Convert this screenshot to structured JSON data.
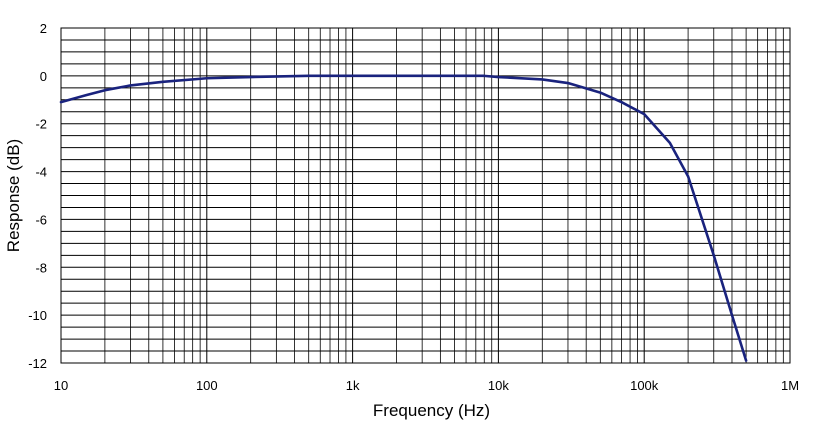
{
  "chart_data": {
    "type": "line",
    "title": "",
    "xlabel": "Frequency (Hz)",
    "ylabel": "Response (dB)",
    "xscale": "log",
    "xlim": [
      10,
      1000000
    ],
    "ylim": [
      -12,
      2
    ],
    "grid": true,
    "legend": "none",
    "x_ticks": [
      10,
      100,
      1000,
      10000,
      100000,
      1000000
    ],
    "x_tick_labels": [
      "10",
      "100",
      "1k",
      "10k",
      "100k",
      "1M"
    ],
    "y_ticks": [
      2,
      0,
      -2,
      -4,
      -6,
      -8,
      -10,
      -12
    ],
    "y_tick_labels": [
      "2",
      "0",
      "-2",
      "-4",
      "-6",
      "-8",
      "-10",
      "-12"
    ],
    "series": [
      {
        "color": "#1a237e",
        "x": [
          10,
          15,
          20,
          30,
          50,
          100,
          200,
          500,
          1000,
          2000,
          5000,
          8000,
          10000,
          20000,
          30000,
          50000,
          70000,
          100000,
          150000,
          200000,
          300000,
          400000,
          500000
        ],
        "y": [
          -1.1,
          -0.8,
          -0.6,
          -0.4,
          -0.25,
          -0.1,
          -0.05,
          0,
          0,
          0,
          0,
          0,
          -0.05,
          -0.15,
          -0.3,
          -0.7,
          -1.1,
          -1.6,
          -2.8,
          -4.2,
          -7.5,
          -10.0,
          -11.9
        ]
      }
    ],
    "colors": {
      "grid": "#000000",
      "line": "#1a237e",
      "background": "#ffffff"
    }
  }
}
